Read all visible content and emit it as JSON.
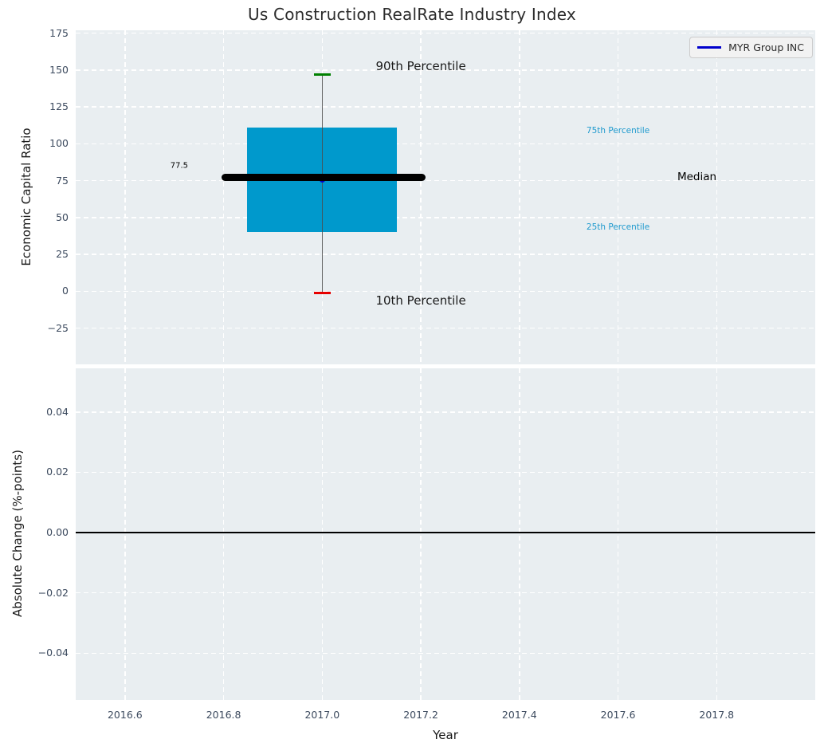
{
  "title": "Us Construction RealRate Industry Index",
  "legend": {
    "label": "MYR Group INC",
    "line_color": "#0000cc"
  },
  "colors": {
    "panel_background": "#e9eef1",
    "grid": "#ffffff",
    "box_fill": "#0099cc",
    "median_line": "#000000",
    "whisker": "#4b4b4b",
    "cap_90th": "#008000",
    "cap_10th": "#e60000",
    "series_point": "#0000cc",
    "tick_label": "#3c4a5e",
    "percentile_label_blue": "#1f9ace",
    "zero_line": "#000000"
  },
  "chart_data": [
    {
      "type": "boxplot",
      "title": "Us Construction RealRate Industry Index",
      "ylabel": "Economic Capital Ratio",
      "xlim": [
        2016.5,
        2018.0
      ],
      "ylim": [
        -49.5,
        177
      ],
      "grid": "white dashed, on",
      "yticks": [
        {
          "v": 175,
          "label": "175"
        },
        {
          "v": 150,
          "label": "150"
        },
        {
          "v": 125,
          "label": "125"
        },
        {
          "v": 100,
          "label": "100"
        },
        {
          "v": 75,
          "label": "75"
        },
        {
          "v": 50,
          "label": "50"
        },
        {
          "v": 25,
          "label": "25"
        },
        {
          "v": 0,
          "label": "0"
        },
        {
          "v": -25,
          "label": "−25"
        }
      ],
      "box": {
        "x": 2017.0,
        "p90": 147,
        "p75": 111,
        "median": 77.5,
        "p25": 40,
        "p10": -1,
        "box_half_width": 0.152,
        "cap_half_width": 0.017,
        "median_line_x0": 2016.795,
        "median_line_x1": 2017.21
      },
      "series": [
        {
          "name": "MYR Group INC",
          "color": "#0000cc",
          "points": [
            {
              "x": 2017.0,
              "y": 75.5
            }
          ]
        }
      ],
      "annotations": [
        {
          "text": "90th Percentile",
          "x": 2017.2,
          "y": 152.5,
          "size": 15,
          "color": "#1a1a1a"
        },
        {
          "text": "10th Percentile",
          "x": 2017.2,
          "y": -6,
          "size": 15,
          "color": "#1a1a1a"
        },
        {
          "text": "75th Percentile",
          "x": 2017.6,
          "y": 109,
          "size": 10.5,
          "color": "#1f9ace"
        },
        {
          "text": "25th Percentile",
          "x": 2017.6,
          "y": 43.5,
          "size": 10.5,
          "color": "#1f9ace"
        },
        {
          "text": "Median",
          "x": 2017.76,
          "y": 77.5,
          "size": 13.5,
          "color": "#000000"
        },
        {
          "text": "77.5",
          "x": 2016.71,
          "y": 85,
          "size": 10,
          "color": "#000000"
        }
      ],
      "legend": [
        "MYR Group INC"
      ],
      "legend_position": "upper right"
    },
    {
      "type": "line",
      "ylabel": "Absolute Change (%-points)",
      "xlabel": "Year",
      "xlim": [
        2016.5,
        2018.0
      ],
      "ylim": [
        -0.0555,
        0.0545
      ],
      "grid": "white dashed, on",
      "xticks": [
        {
          "v": 2016.6,
          "label": "2016.6"
        },
        {
          "v": 2016.8,
          "label": "2016.8"
        },
        {
          "v": 2017.0,
          "label": "2017.0"
        },
        {
          "v": 2017.2,
          "label": "2017.2"
        },
        {
          "v": 2017.4,
          "label": "2017.4"
        },
        {
          "v": 2017.6,
          "label": "2017.6"
        },
        {
          "v": 2017.8,
          "label": "2017.8"
        }
      ],
      "yticks": [
        {
          "v": 0.04,
          "label": "0.04"
        },
        {
          "v": 0.02,
          "label": "0.02"
        },
        {
          "v": 0.0,
          "label": "0.00"
        },
        {
          "v": -0.02,
          "label": "−0.02"
        },
        {
          "v": -0.04,
          "label": "−0.04"
        }
      ],
      "zero_line": 0.0,
      "series": []
    }
  ]
}
